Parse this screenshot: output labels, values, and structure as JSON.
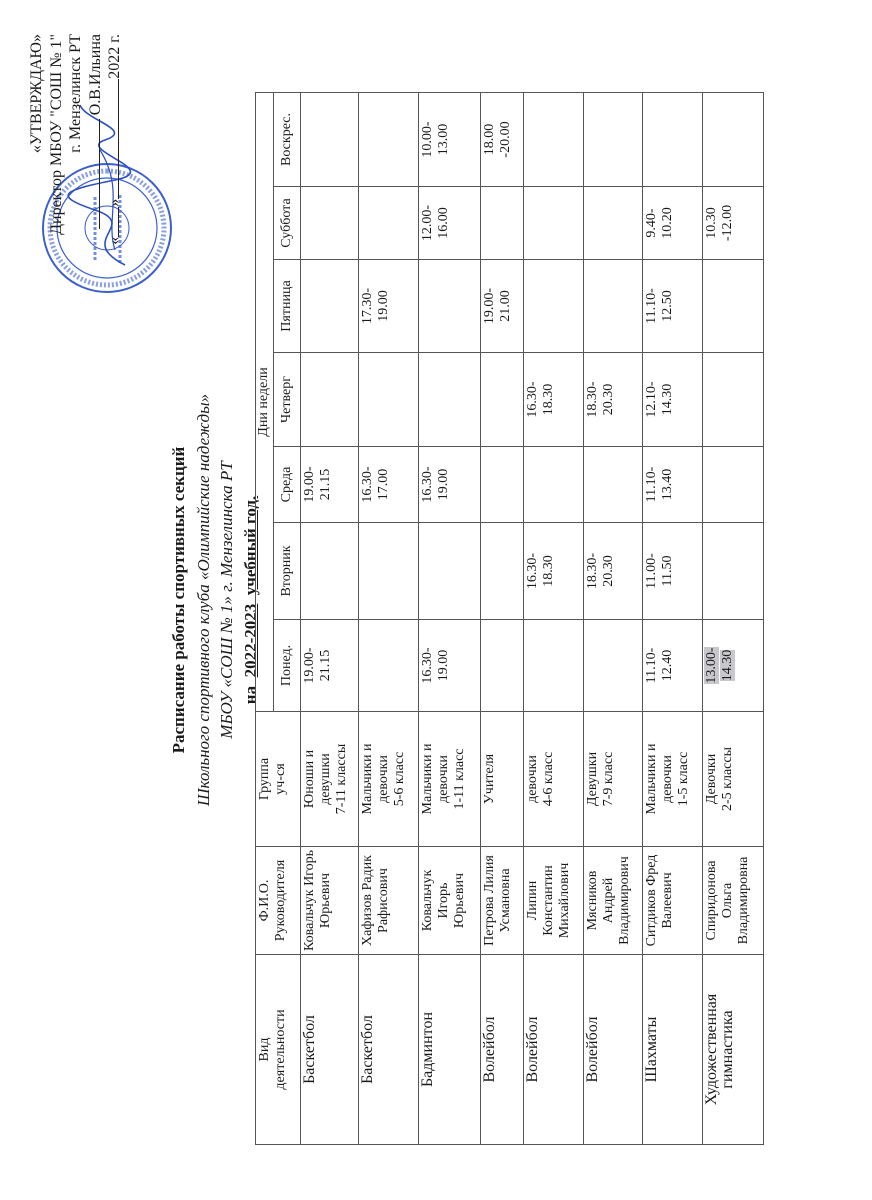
{
  "approval": {
    "line1": "«УТВЕРЖДАЮ»",
    "line2": "Директор МБОУ \"СОШ № 1\"",
    "line3": "г. Мензелинск РТ",
    "line4": "О.В.Ильина",
    "line5_open": "«",
    "line5_close": "»",
    "line5_year": "2022 г.",
    "stamp_text": "Исполнительный комитет Мензелинского муниципального района Республики Татарстан · Муниципальное бюджетное общеобразовательное учреждение «Средняя общеобразовательная школа №1» · ИНН 1628003870 · КПП 162801001 · ОГРН 1021606555554",
    "stamp_color": "#3b5fd0"
  },
  "title": {
    "line1": "Расписание работы спортивных секций",
    "line2": "Школьного спортивного клуба «Олимпийские надежды»",
    "line3": "МБОУ «СОШ № 1» г. Мензелинска РТ",
    "prefix": "на",
    "year": "2022-2023",
    "suffix": "учебный год."
  },
  "table": {
    "headers": {
      "activity": "Вид\nдеятельности",
      "leader": "Ф.И.О.\nРуководителя",
      "group": "Группа\nуч-ся",
      "days_group": "Дни недели",
      "days": [
        "Понед.",
        "Вторник",
        "Среда",
        "Четверг",
        "Пятница",
        "Суббота",
        "Воскрес."
      ]
    },
    "rows": [
      {
        "activity": "Баскетбол",
        "leader": "Ковальчук Игорь\nЮрьевич",
        "group": "Юноши и\nдевушки\n7-11  классы",
        "days": [
          "19.00-\n21.15",
          "",
          "19.00-\n21.15",
          "",
          "",
          "",
          ""
        ]
      },
      {
        "activity": "Баскетбол",
        "leader": "Хафизов Радик\nРафисович",
        "group": "Мальчики и\nдевочки\n5-6 класс",
        "days": [
          "",
          "",
          "16.30-\n17.00",
          "",
          "17.30-\n19.00",
          "",
          ""
        ]
      },
      {
        "activity": "Бадминтон",
        "leader": "Ковальчук\nИгорь\nЮрьевич",
        "group": "Мальчики и\nдевочки\n1-11 класс",
        "days": [
          "16.30-\n19.00",
          "",
          "16.30-\n19.00",
          "",
          "",
          "12.00-\n16.00",
          "10.00-\n13.00"
        ]
      },
      {
        "activity": "Волейбол",
        "leader": "Петрова Лилия\nУсмановна",
        "group": "Учителя",
        "days": [
          "",
          "",
          "",
          "",
          "19.00-\n21.00",
          "",
          "18.00\n-20.00"
        ]
      },
      {
        "activity": "Волейбол",
        "leader": "Липин\nКонстантин\nМихайлович",
        "group": "девочки\n4-6 класс",
        "days": [
          "",
          "16.30-\n18.30",
          "",
          "16.30-\n18.30",
          "",
          "",
          ""
        ]
      },
      {
        "activity": "Волейбол",
        "leader": "Мясников\nАндрей\nВладимирович",
        "group": "Девушки\n7-9  класс",
        "days": [
          "",
          "18.30-\n20.30",
          "",
          "18.30-\n20.30",
          "",
          "",
          ""
        ]
      },
      {
        "activity": "Шахматы",
        "leader": "Ситдиков Фред\nВалеевич",
        "group": "Мальчики и\nдевочки\n1-5  класс",
        "days": [
          "11.10-\n12.40",
          "11.00-\n11.50",
          "11.10-\n13.40",
          "12.10-\n14.30",
          "11.10-\n12.50",
          "9.40-\n10.20",
          ""
        ]
      },
      {
        "activity": "Художественная\nгимнастика",
        "leader": "Спиридонова\nОльга\nВладимировна",
        "group": "Девочки\n2-5  классы",
        "days": [
          "13.00-\n14.30",
          "",
          "",
          "",
          "",
          "10.30\n-12.00",
          ""
        ]
      }
    ]
  }
}
